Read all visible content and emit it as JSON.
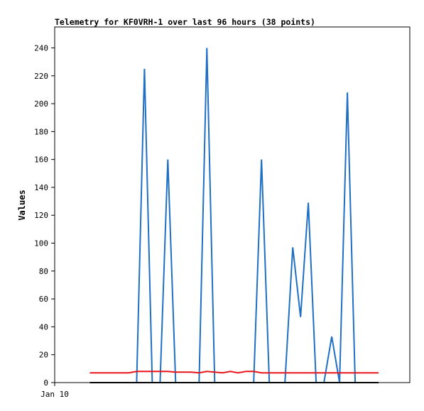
{
  "chart_data": {
    "type": "line",
    "title": "Telemetry for KF0VRH-1 over last 96 hours (38 points)",
    "ylabel": "Values",
    "xlabel": "",
    "x_tick_labels": [
      "Jan 10"
    ],
    "ylim": [
      0,
      255
    ],
    "y_ticks": [
      0,
      20,
      40,
      60,
      80,
      100,
      120,
      140,
      160,
      180,
      200,
      220,
      240
    ],
    "x": [
      0,
      1,
      2,
      3,
      4,
      5,
      6,
      7,
      8,
      9,
      10,
      11,
      12,
      13,
      14,
      15,
      16,
      17,
      18,
      19,
      20,
      21,
      22,
      23,
      24,
      25,
      26,
      27,
      28,
      29,
      30,
      31,
      32,
      33,
      34,
      35,
      36,
      37
    ],
    "xlim": [
      -4.5,
      41
    ],
    "series": [
      {
        "color": "#1f6fc5",
        "values": [
          0,
          0,
          0,
          0,
          0,
          0,
          0,
          225,
          0,
          0,
          160,
          0,
          0,
          0,
          0,
          240,
          0,
          0,
          0,
          0,
          0,
          0,
          160,
          0,
          0,
          0,
          97,
          47,
          129,
          0,
          0,
          33,
          0,
          208,
          0,
          0,
          0,
          0
        ]
      },
      {
        "color": "#e8151b",
        "values": [
          7,
          7,
          7,
          7,
          7,
          7,
          8,
          8,
          8,
          8,
          8,
          7.5,
          7.5,
          7.5,
          7,
          8,
          7.5,
          7,
          8,
          7,
          8,
          8,
          7,
          7,
          7,
          7,
          7,
          7,
          7,
          7,
          7,
          7,
          7,
          7,
          7,
          7,
          7,
          7
        ]
      },
      {
        "color": "#000000",
        "values": [
          0,
          0,
          0,
          0,
          0,
          0,
          0,
          0,
          0,
          0,
          0,
          0,
          0,
          0,
          0,
          0,
          0,
          0,
          0,
          0,
          0,
          0,
          0,
          0,
          0,
          0,
          0,
          0,
          0,
          0,
          0,
          0,
          0,
          0,
          0,
          0,
          0,
          0
        ]
      }
    ],
    "grid": false,
    "legend": "none"
  }
}
